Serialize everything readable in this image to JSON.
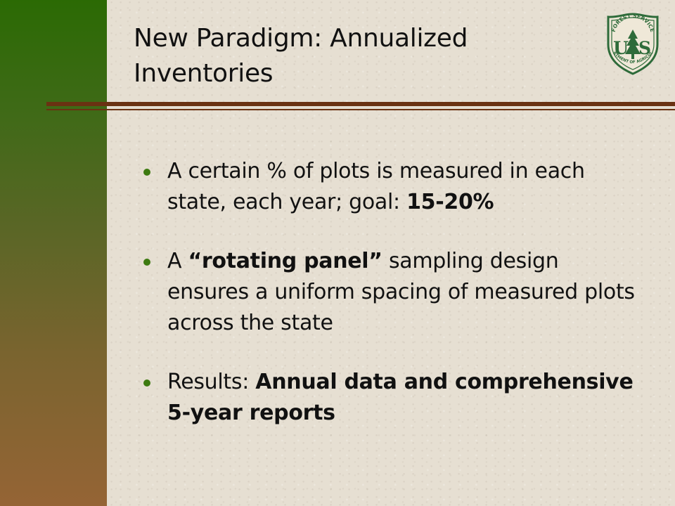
{
  "slide": {
    "title": "New Paradigm:  Annualized Inventories",
    "logo": {
      "icon": "usda-forest-service-shield-icon",
      "arc_text": "FOREST SERVICE",
      "letters": "U S",
      "bottom_text": "DEPARTMENT OF AGRICULTURE"
    },
    "colors": {
      "sidebar_top": "#2b6a04",
      "sidebar_bottom": "#956435",
      "rule": "#6a3212",
      "bullet_dot": "#3d7a10",
      "logo": "#2e6b3a"
    },
    "bullets": [
      {
        "pre": "A certain % of plots is measured in each state, each year; goal:  ",
        "bold": "15-20%",
        "post": ""
      },
      {
        "pre": "A ",
        "bold": "“rotating panel”",
        "post": " sampling design ensures a uniform spacing of measured plots across the state"
      },
      {
        "pre": "Results:  ",
        "bold": "Annual data and comprehensive 5-year reports",
        "post": ""
      }
    ]
  }
}
